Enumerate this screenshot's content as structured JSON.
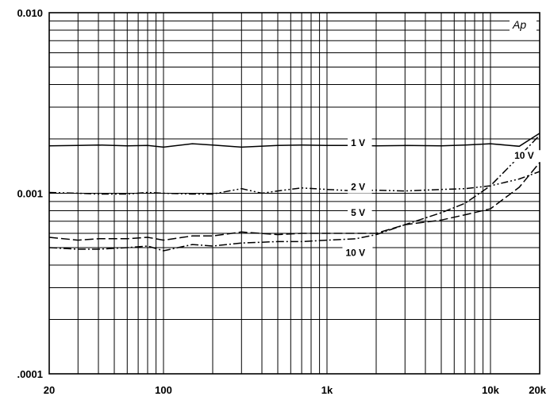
{
  "chart_data": {
    "type": "line",
    "title": "",
    "xlabel": "",
    "ylabel": "",
    "x_scale": "log",
    "y_scale": "log",
    "xlim": [
      20,
      20000
    ],
    "ylim": [
      0.0001,
      0.01
    ],
    "grid": true,
    "unit_label": "Ap",
    "x_ticks": [
      {
        "value": 20,
        "label": "20"
      },
      {
        "value": 100,
        "label": "100"
      },
      {
        "value": 1000,
        "label": "1k"
      },
      {
        "value": 10000,
        "label": "10k"
      },
      {
        "value": 20000,
        "label": "20k"
      }
    ],
    "y_ticks": [
      {
        "value": 0.01,
        "label": "0.010"
      },
      {
        "value": 0.001,
        "label": "0.001"
      },
      {
        "value": 0.0001,
        "label": ".0001"
      }
    ],
    "series": [
      {
        "name": "1 V",
        "style": "solid",
        "label_at": [
          1400,
          0.00183
        ],
        "x": [
          20,
          30,
          40,
          60,
          80,
          100,
          150,
          200,
          300,
          500,
          700,
          1000,
          1500,
          2000,
          3000,
          5000,
          7000,
          10000,
          15000,
          20000
        ],
        "y": [
          0.00183,
          0.00184,
          0.00185,
          0.00183,
          0.00184,
          0.0018,
          0.00188,
          0.00185,
          0.0018,
          0.00184,
          0.00185,
          0.00184,
          0.00184,
          0.00183,
          0.00184,
          0.00183,
          0.00185,
          0.00188,
          0.00182,
          0.00215
        ]
      },
      {
        "name": "2 V",
        "style": "dash-dot-dot",
        "label_at": [
          1400,
          0.00104
        ],
        "x": [
          20,
          30,
          40,
          60,
          80,
          100,
          150,
          200,
          300,
          400,
          500,
          700,
          1000,
          1500,
          2000,
          3000,
          5000,
          7000,
          10000,
          15000,
          20000
        ],
        "y": [
          0.00101,
          0.001,
          0.00099,
          0.00099,
          0.00101,
          0.001,
          0.00099,
          0.00099,
          0.00106,
          0.001,
          0.00103,
          0.00107,
          0.00105,
          0.00103,
          0.00104,
          0.00103,
          0.00105,
          0.00106,
          0.0011,
          0.0012,
          0.00132
        ]
      },
      {
        "name": "5 V",
        "style": "dashed",
        "label_at": [
          1400,
          0.00075
        ],
        "x": [
          20,
          30,
          40,
          60,
          80,
          100,
          150,
          200,
          300,
          500,
          700,
          1000,
          1500,
          2000,
          3000,
          5000,
          7000,
          10000,
          15000,
          20000
        ],
        "y": [
          0.00057,
          0.00055,
          0.00056,
          0.00056,
          0.00057,
          0.00055,
          0.00058,
          0.00058,
          0.00061,
          0.00059,
          0.0006,
          0.0006,
          0.0006,
          0.0006,
          0.00067,
          0.00071,
          0.00076,
          0.00082,
          0.00108,
          0.00148
        ]
      },
      {
        "name": "10 V",
        "style": "dash-dot",
        "label_at": [
          1300,
          0.00045
        ],
        "label2_at": [
          14000,
          0.00155
        ],
        "x": [
          20,
          30,
          40,
          60,
          80,
          100,
          150,
          200,
          300,
          500,
          700,
          1000,
          1500,
          2000,
          3000,
          5000,
          7000,
          10000,
          15000,
          20000
        ],
        "y": [
          0.0005,
          0.00049,
          0.00049,
          0.0005,
          0.00051,
          0.00048,
          0.00052,
          0.00051,
          0.00053,
          0.00054,
          0.00054,
          0.00055,
          0.00056,
          0.00059,
          0.00067,
          0.00078,
          0.00088,
          0.0011,
          0.0016,
          0.0021
        ]
      }
    ]
  }
}
